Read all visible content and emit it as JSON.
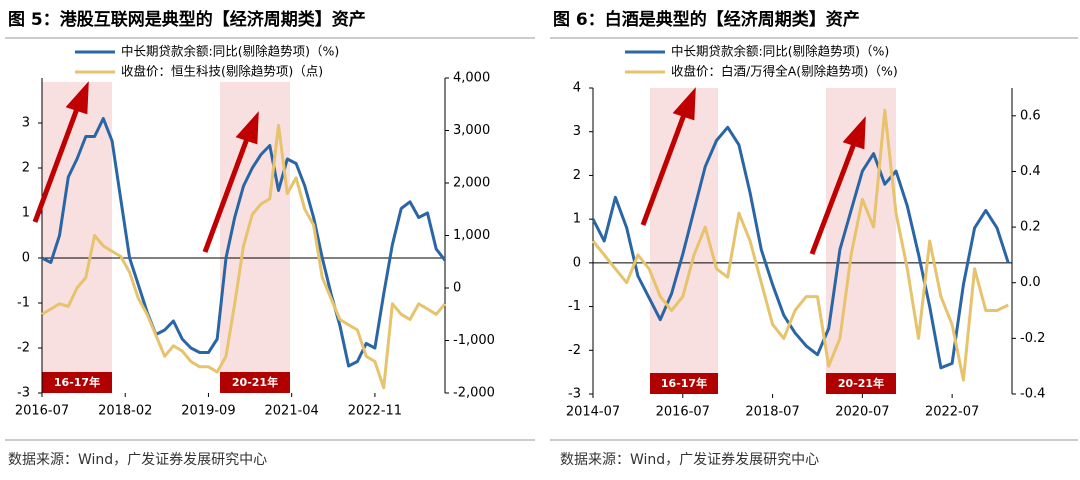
{
  "chart_data": [
    {
      "type": "line",
      "title": "图 5：港股互联网是典型的【经济周期类】资产",
      "note": "数据来源：Wind，广发证券发展研究中心",
      "annotations": [
        "16-17年",
        "20-21年"
      ],
      "x": [
        "2016-07",
        "2016-09",
        "2016-11",
        "2017-01",
        "2017-03",
        "2017-05",
        "2017-07",
        "2017-09",
        "2017-11",
        "2018-01",
        "2018-03",
        "2018-05",
        "2018-07",
        "2018-09",
        "2018-11",
        "2019-01",
        "2019-03",
        "2019-05",
        "2019-07",
        "2019-09",
        "2019-11",
        "2020-01",
        "2020-03",
        "2020-05",
        "2020-07",
        "2020-09",
        "2020-11",
        "2021-01",
        "2021-03",
        "2021-05",
        "2021-07",
        "2021-09",
        "2021-11",
        "2022-01",
        "2022-03",
        "2022-05",
        "2022-07",
        "2022-09",
        "2022-11",
        "2023-01",
        "2023-03",
        "2023-05",
        "2023-07",
        "2023-09",
        "2023-11",
        "2024-01",
        "2024-03"
      ],
      "xlim": [
        "2016-07",
        "2024-03"
      ],
      "xticks": [
        "2016-07",
        "2018-02",
        "2019-09",
        "2021-04",
        "2022-11"
      ],
      "ylim": [
        -3,
        4
      ],
      "yticks": [
        -3,
        -2,
        -1,
        0,
        1,
        2,
        3
      ],
      "y2lim": [
        -2000,
        4000
      ],
      "y2ticks": [
        {
          "value": -2000,
          "label": "-2,000"
        },
        {
          "value": -1000,
          "label": "-1,000"
        },
        0,
        {
          "value": 1000,
          "label": "1,000"
        },
        {
          "value": 2000,
          "label": "2,000"
        },
        {
          "value": 3000,
          "label": "3,000"
        },
        {
          "value": 4000,
          "label": "4,000"
        }
      ],
      "series": [
        {
          "name": "中长期贷款余额:同比(剔除趋势项)（%)",
          "color": "#2a66a6",
          "values": [
            0,
            -0.1,
            0.5,
            1.8,
            2.2,
            2.7,
            2.7,
            3.1,
            2.6,
            1.3,
            0.0,
            -0.6,
            -1.2,
            -1.7,
            -1.6,
            -1.4,
            -1.8,
            -2.0,
            -2.1,
            -2.1,
            -1.8,
            0.0,
            0.9,
            1.6,
            2.0,
            2.3,
            2.5,
            1.5,
            2.2,
            2.1,
            1.6,
            0.9,
            0.0,
            -0.8,
            -1.5,
            -2.4,
            -2.3,
            -1.9,
            -2.0,
            -0.8,
            0.3,
            1.1,
            1.25,
            0.9,
            1.0,
            0.2,
            -0.05
          ]
        },
        {
          "name": "收盘价：恒生科技(剔除趋势项)（点)",
          "color": "#e6c36c",
          "axis": "y2",
          "values": [
            -500,
            -400,
            -300,
            -350,
            0,
            200,
            1000,
            800,
            700,
            600,
            300,
            -200,
            -500,
            -900,
            -1300,
            -1100,
            -1200,
            -1400,
            -1500,
            -1500,
            -1600,
            -1300,
            -300,
            800,
            1400,
            1600,
            1700,
            3100,
            1800,
            2100,
            1500,
            1200,
            200,
            -200,
            -600,
            -700,
            -800,
            -1300,
            -1400,
            -1900,
            -300,
            -500,
            -600,
            -300,
            -400,
            -500,
            -300
          ]
        }
      ]
    },
    {
      "type": "line",
      "title": "图 6：白酒是典型的【经济周期类】资产",
      "note": "数据来源：Wind，广发证券发展研究中心",
      "annotations": [
        "16-17年",
        "20-21年"
      ],
      "x": [
        "2014-07",
        "2014-10",
        "2015-01",
        "2015-04",
        "2015-07",
        "2015-10",
        "2016-01",
        "2016-04",
        "2016-07",
        "2016-10",
        "2017-01",
        "2017-04",
        "2017-07",
        "2017-10",
        "2018-01",
        "2018-04",
        "2018-07",
        "2018-10",
        "2019-01",
        "2019-04",
        "2019-07",
        "2019-10",
        "2020-01",
        "2020-04",
        "2020-07",
        "2020-10",
        "2021-01",
        "2021-04",
        "2021-07",
        "2021-10",
        "2022-01",
        "2022-04",
        "2022-07",
        "2022-10",
        "2023-01",
        "2023-04",
        "2023-07",
        "2023-10"
      ],
      "xlim": [
        "2014-07",
        "2023-11"
      ],
      "xticks": [
        "2014-07",
        "2016-07",
        "2018-07",
        "2020-07",
        "2022-07"
      ],
      "ylim": [
        -3,
        4
      ],
      "yticks": [
        -3,
        -2,
        -1,
        0,
        1,
        2,
        3,
        4
      ],
      "y2lim": [
        -0.4,
        0.7
      ],
      "y2ticks": [
        -0.4,
        -0.2,
        {
          "value": 0,
          "label": "0.0"
        },
        0.2,
        0.4,
        0.6
      ],
      "series": [
        {
          "name": "中长期贷款余额:同比(剔除趋势项)（%)",
          "color": "#2a66a6",
          "values": [
            1.0,
            0.5,
            1.5,
            0.8,
            -0.3,
            -0.8,
            -1.3,
            -0.7,
            0.2,
            1.2,
            2.2,
            2.8,
            3.1,
            2.7,
            1.6,
            0.3,
            -0.5,
            -1.2,
            -1.6,
            -1.9,
            -2.1,
            -1.5,
            0.3,
            1.2,
            2.1,
            2.5,
            1.8,
            2.1,
            1.3,
            0.2,
            -1.0,
            -2.4,
            -2.3,
            -0.5,
            0.8,
            1.2,
            0.8,
            0.0
          ]
        },
        {
          "name": "收盘价：白酒/万得全A(剔除趋势项)（%)",
          "color": "#e6c36c",
          "axis": "y2",
          "values": [
            0.15,
            0.1,
            0.05,
            0.0,
            0.1,
            0.05,
            -0.05,
            -0.1,
            -0.05,
            0.1,
            0.2,
            0.05,
            0.02,
            0.25,
            0.15,
            0.0,
            -0.15,
            -0.2,
            -0.1,
            -0.05,
            -0.05,
            -0.3,
            -0.2,
            0.1,
            0.3,
            0.2,
            0.62,
            0.25,
            0.05,
            -0.2,
            0.15,
            -0.05,
            -0.15,
            -0.35,
            0.05,
            -0.1,
            -0.1,
            -0.08
          ]
        }
      ]
    }
  ]
}
